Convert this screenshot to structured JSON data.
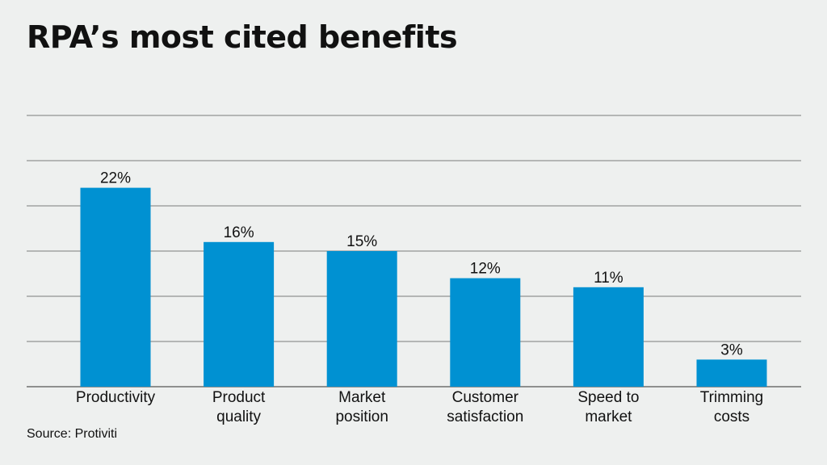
{
  "title": "RPA’s most cited benefits",
  "source": "Source: Protiviti",
  "colors": {
    "bar": "#0091d2",
    "grid": "#555555",
    "text": "#111111",
    "background": "#eef0ef"
  },
  "chart_data": {
    "type": "bar",
    "title": "RPA’s most cited benefits",
    "categories": [
      [
        "Productivity"
      ],
      [
        "Product",
        "quality"
      ],
      [
        "Market",
        "position"
      ],
      [
        "Customer",
        "satisfaction"
      ],
      [
        "Speed to",
        "market"
      ],
      [
        "Trimming",
        "costs"
      ]
    ],
    "values": [
      22,
      16,
      15,
      12,
      11,
      3
    ],
    "value_labels": [
      "22%",
      "16%",
      "15%",
      "12%",
      "11%",
      "3%"
    ],
    "ylim": [
      0,
      30
    ],
    "grid": true,
    "y_tick_labels_shown": false,
    "legend": "none",
    "xlabel": "",
    "ylabel": ""
  }
}
